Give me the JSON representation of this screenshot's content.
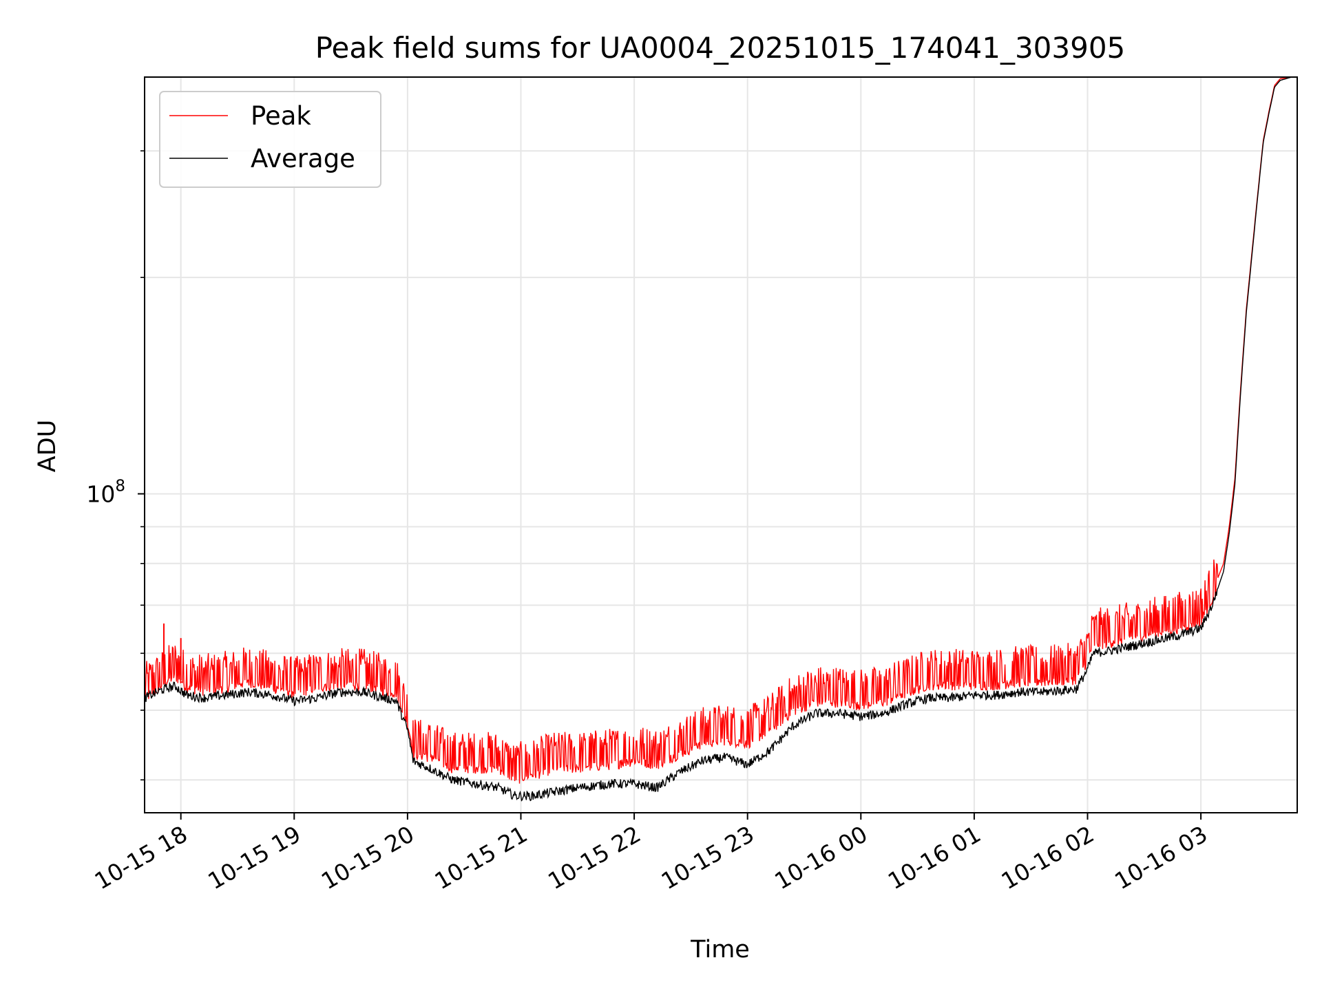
{
  "chart_data": {
    "type": "line",
    "title": "Peak field sums for UA0004_20251015_174041_303905",
    "xlabel": "Time",
    "ylabel": "ADU",
    "yscale": "log",
    "ylim": [
      36000000,
      380000000
    ],
    "xlim_hours": [
      17.68,
      27.85
    ],
    "grid": true,
    "legend": {
      "placement": "top-left",
      "entries": [
        "Peak",
        "Average"
      ]
    },
    "x_ticks": [
      {
        "hour": 18,
        "label": "10-15 18"
      },
      {
        "hour": 19,
        "label": "10-15 19"
      },
      {
        "hour": 20,
        "label": "10-15 20"
      },
      {
        "hour": 21,
        "label": "10-15 21"
      },
      {
        "hour": 22,
        "label": "10-15 22"
      },
      {
        "hour": 23,
        "label": "10-15 23"
      },
      {
        "hour": 24,
        "label": "10-16 00"
      },
      {
        "hour": 25,
        "label": "10-16 01"
      },
      {
        "hour": 26,
        "label": "10-16 02"
      },
      {
        "hour": 27,
        "label": "10-16 03"
      }
    ],
    "y_major_ticks": [
      {
        "value": 100000000,
        "base": "10",
        "exponent": "8"
      }
    ],
    "y_minor_ticks": [
      40000000,
      50000000,
      60000000,
      70000000,
      80000000,
      90000000,
      200000000,
      300000000
    ],
    "series": [
      {
        "name": "Peak",
        "color": "#ff0000",
        "x_hours": [
          17.68,
          17.85,
          17.95,
          18.05,
          18.2,
          18.4,
          18.6,
          18.8,
          19.0,
          19.2,
          19.4,
          19.6,
          19.9,
          20.0,
          20.05,
          20.2,
          20.4,
          20.6,
          20.8,
          20.95,
          21.1,
          21.3,
          21.5,
          21.8,
          22.0,
          22.2,
          22.4,
          22.6,
          22.8,
          23.0,
          23.2,
          23.4,
          23.6,
          23.8,
          24.0,
          24.2,
          24.4,
          24.6,
          24.8,
          25.0,
          25.2,
          25.4,
          25.6,
          25.9,
          26.0,
          26.05,
          26.2,
          26.4,
          26.6,
          26.8,
          27.0,
          27.1,
          27.2,
          27.25,
          27.3,
          27.35,
          27.4,
          27.5,
          27.55,
          27.6,
          27.65,
          27.7,
          27.8,
          27.85
        ],
        "values": [
          53000000,
          55500000,
          57000000,
          55000000,
          54500000,
          55000000,
          56000000,
          55000000,
          54000000,
          55000000,
          55500000,
          55500000,
          54000000,
          49000000,
          44500000,
          44000000,
          42500000,
          42500000,
          42500000,
          41000000,
          41500000,
          42500000,
          42500000,
          43000000,
          43500000,
          43000000,
          44500000,
          46000000,
          46500000,
          46000000,
          48000000,
          51000000,
          52500000,
          52500000,
          52000000,
          52500000,
          54000000,
          55500000,
          55500000,
          55500000,
          55500000,
          56000000,
          56000000,
          56500000,
          60000000,
          63000000,
          63500000,
          64500000,
          65500000,
          66500000,
          68000000,
          73000000,
          80000000,
          90000000,
          105000000,
          140000000,
          180000000,
          260000000,
          310000000,
          340000000,
          370000000,
          378000000,
          380000000,
          380000000
        ]
      },
      {
        "name": "Average",
        "color": "#000000",
        "x_hours": [
          17.68,
          17.85,
          17.95,
          18.05,
          18.2,
          18.4,
          18.6,
          18.8,
          19.0,
          19.2,
          19.4,
          19.6,
          19.9,
          20.0,
          20.05,
          20.2,
          20.4,
          20.6,
          20.8,
          20.95,
          21.1,
          21.3,
          21.5,
          21.8,
          22.0,
          22.2,
          22.4,
          22.6,
          22.8,
          23.0,
          23.2,
          23.4,
          23.6,
          23.8,
          24.0,
          24.2,
          24.4,
          24.6,
          24.8,
          25.0,
          25.2,
          25.4,
          25.6,
          25.9,
          26.0,
          26.05,
          26.2,
          26.4,
          26.6,
          26.8,
          27.0,
          27.1,
          27.2,
          27.25,
          27.3,
          27.35,
          27.4,
          27.5,
          27.55,
          27.6,
          27.65,
          27.7,
          27.8,
          27.85
        ],
        "values": [
          52000000,
          53500000,
          54000000,
          52500000,
          52000000,
          52500000,
          53000000,
          52500000,
          51500000,
          52000000,
          53000000,
          53000000,
          51500000,
          47000000,
          42500000,
          41500000,
          40000000,
          39500000,
          39000000,
          38000000,
          38000000,
          38500000,
          39000000,
          39500000,
          39500000,
          39000000,
          41000000,
          42500000,
          43000000,
          42000000,
          44000000,
          47500000,
          49500000,
          49500000,
          49000000,
          49500000,
          51000000,
          52000000,
          52000000,
          52500000,
          52500000,
          53000000,
          53000000,
          53500000,
          57000000,
          60000000,
          60500000,
          61500000,
          62500000,
          63500000,
          65000000,
          70000000,
          78000000,
          88000000,
          103000000,
          138000000,
          178000000,
          258000000,
          308000000,
          338000000,
          368000000,
          376000000,
          380000000,
          380000000
        ]
      }
    ]
  }
}
